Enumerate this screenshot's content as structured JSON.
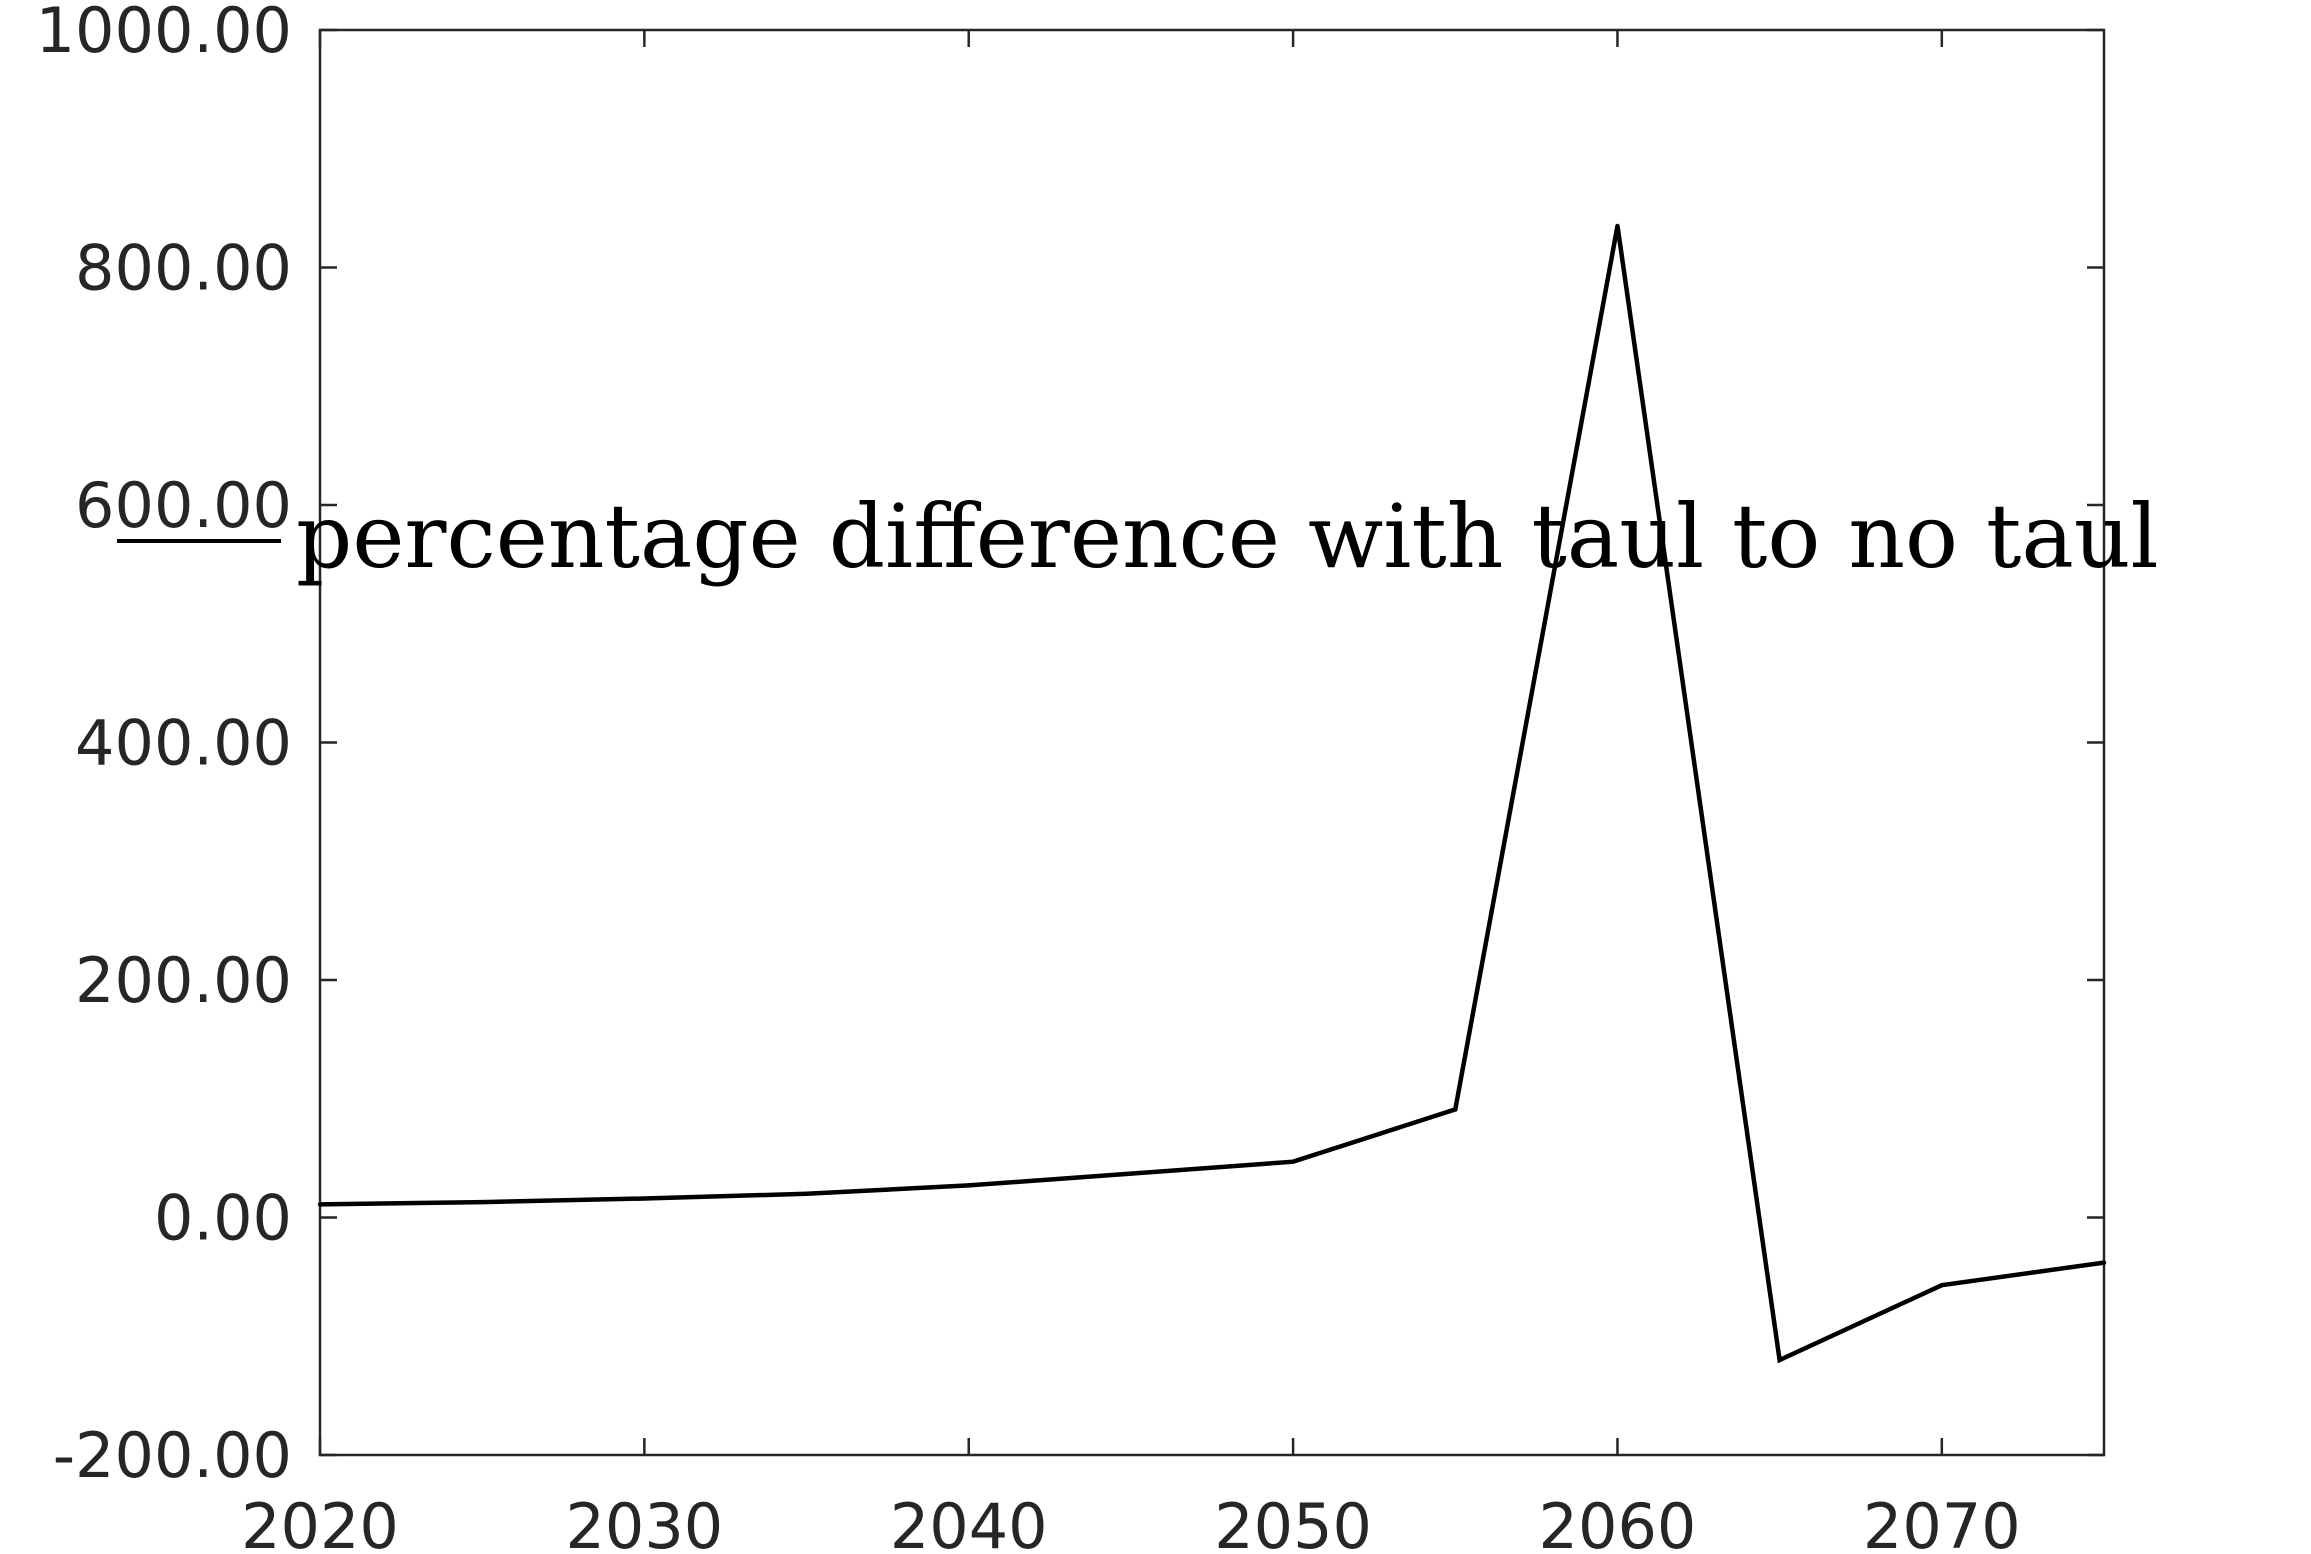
{
  "chart_data": {
    "type": "line",
    "title": "",
    "xlabel": "",
    "ylabel": "",
    "xlim": [
      2020,
      2075
    ],
    "ylim": [
      -200,
      1000
    ],
    "grid": false,
    "legend_placement": "center-left",
    "x_ticks": [
      {
        "value": 2020,
        "label": "2020"
      },
      {
        "value": 2030,
        "label": "2030"
      },
      {
        "value": 2040,
        "label": "2040"
      },
      {
        "value": 2050,
        "label": "2050"
      },
      {
        "value": 2060,
        "label": "2060"
      },
      {
        "value": 2070,
        "label": "2070"
      }
    ],
    "y_ticks": [
      {
        "value": 1000,
        "label": "1000.00"
      },
      {
        "value": 800,
        "label": "800.00"
      },
      {
        "value": 600,
        "label": "600.00"
      },
      {
        "value": 400,
        "label": "400.00"
      },
      {
        "value": 200,
        "label": "200.00"
      },
      {
        "value": 0,
        "label": "0.00"
      },
      {
        "value": -200,
        "label": "-200.00"
      }
    ],
    "series": [
      {
        "name": "percentage difference with taul to no taul",
        "color": "#000000",
        "x": [
          2020,
          2025,
          2030,
          2035,
          2040,
          2045,
          2050,
          2055,
          2060,
          2065,
          2070,
          2075
        ],
        "y": [
          11,
          13,
          16,
          20,
          27,
          37,
          47,
          91,
          835,
          -120,
          -57,
          -38
        ]
      }
    ]
  }
}
